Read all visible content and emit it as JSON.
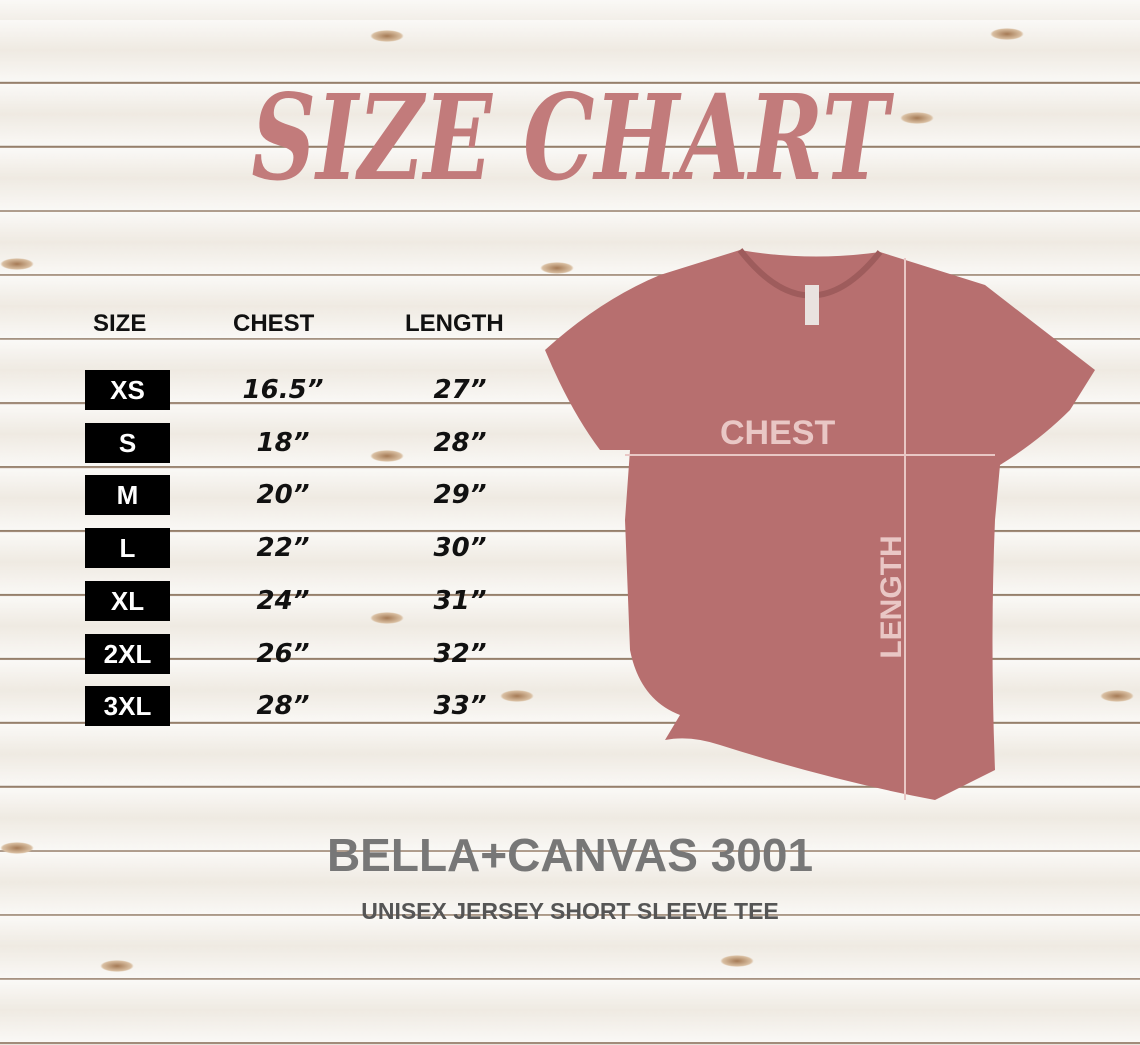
{
  "title": "SIZE CHART",
  "table": {
    "headers": [
      "SIZE",
      "CHEST",
      "LENGTH"
    ],
    "rows": [
      {
        "size": "XS",
        "chest": "16.5”",
        "length": "27”"
      },
      {
        "size": "S",
        "chest": "18”",
        "length": "28”"
      },
      {
        "size": "M",
        "chest": "20”",
        "length": "29”"
      },
      {
        "size": "L",
        "chest": "22”",
        "length": "30”"
      },
      {
        "size": "XL",
        "chest": "24”",
        "length": "31”"
      },
      {
        "size": "2XL",
        "chest": "26”",
        "length": "32”"
      },
      {
        "size": "3XL",
        "chest": "28”",
        "length": "33”"
      }
    ]
  },
  "diagram": {
    "chest_label": "CHEST",
    "length_label": "LENGTH",
    "shirt_color": "#b76f6f"
  },
  "brand": "BELLA+CANVAS 3001",
  "subtitle": "UNISEX JERSEY SHORT SLEEVE TEE",
  "colors": {
    "title": "#c27b7b",
    "badge": "#000000"
  }
}
